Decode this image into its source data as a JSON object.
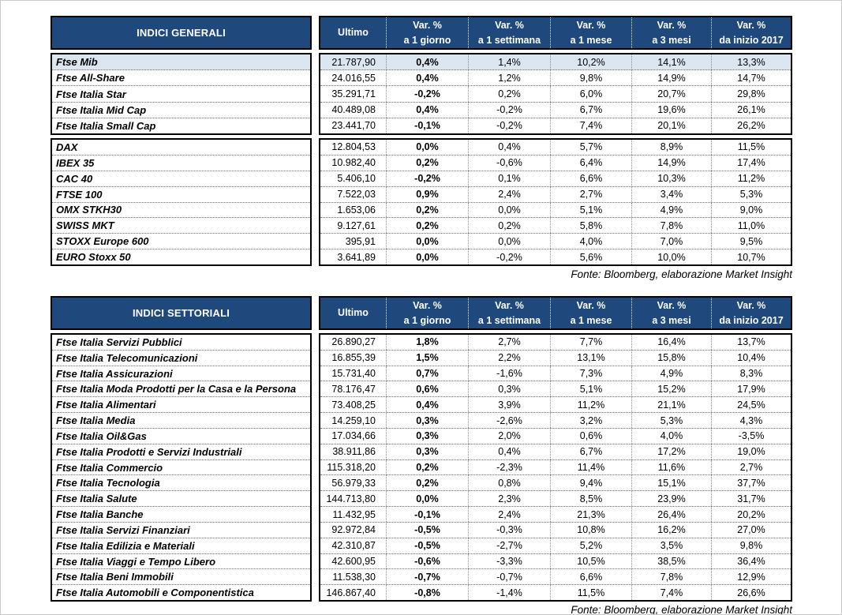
{
  "colors": {
    "header_bg": "#1F497D",
    "header_text": "#FFFFFF",
    "highlight_row_bg": "#DCE6F1",
    "border_black": "#000000",
    "page_frame": "#C8C8C8"
  },
  "column_keys": [
    "ultimo",
    "var-1-giorno",
    "var-1-settimana",
    "var-1-mese",
    "var-3-mesi",
    "var-inizio-2017"
  ],
  "column_headers": [
    {
      "line1": "Ultimo",
      "line2": ""
    },
    {
      "line1": "Var. %",
      "line2": "a 1 giorno"
    },
    {
      "line1": "Var. %",
      "line2": "a 1 settimana"
    },
    {
      "line1": "Var. %",
      "line2": "a 1 mese"
    },
    {
      "line1": "Var. %",
      "line2": "a 3 mesi"
    },
    {
      "line1": "Var. %",
      "line2": "da inizio 2017"
    }
  ],
  "tables": [
    {
      "title": "INDICI GENERALI",
      "source": "Fonte: Bloomberg, elaborazione Market Insight",
      "groups": [
        {
          "rows": [
            {
              "name": "Ftse Mib",
              "highlight": true,
              "values": [
                "21.787,90",
                "0,4%",
                "1,4%",
                "10,2%",
                "14,1%",
                "13,3%"
              ]
            },
            {
              "name": "Ftse All-Share",
              "values": [
                "24.016,55",
                "0,4%",
                "1,2%",
                "9,8%",
                "14,9%",
                "14,7%"
              ]
            },
            {
              "name": "Ftse Italia Star",
              "values": [
                "35.291,71",
                "-0,2%",
                "0,2%",
                "6,0%",
                "20,7%",
                "29,8%"
              ]
            },
            {
              "name": "Ftse Italia Mid Cap",
              "values": [
                "40.489,08",
                "0,4%",
                "-0,2%",
                "6,7%",
                "19,6%",
                "26,1%"
              ]
            },
            {
              "name": "Ftse Italia Small Cap",
              "values": [
                "23.441,70",
                "-0,1%",
                "-0,2%",
                "7,4%",
                "20,1%",
                "26,2%"
              ]
            }
          ]
        },
        {
          "rows": [
            {
              "name": "DAX",
              "values": [
                "12.804,53",
                "0,0%",
                "0,4%",
                "5,7%",
                "8,9%",
                "11,5%"
              ]
            },
            {
              "name": "IBEX 35",
              "values": [
                "10.982,40",
                "0,2%",
                "-0,6%",
                "6,4%",
                "14,9%",
                "17,4%"
              ]
            },
            {
              "name": "CAC 40",
              "values": [
                "5.406,10",
                "-0,2%",
                "0,1%",
                "6,6%",
                "10,3%",
                "11,2%"
              ]
            },
            {
              "name": "FTSE 100",
              "values": [
                "7.522,03",
                "0,9%",
                "2,4%",
                "2,7%",
                "3,4%",
                "5,3%"
              ]
            },
            {
              "name": "OMX STKH30",
              "values": [
                "1.653,06",
                "0,2%",
                "0,0%",
                "5,1%",
                "4,9%",
                "9,0%"
              ]
            },
            {
              "name": "SWISS MKT",
              "values": [
                "9.127,61",
                "0,2%",
                "0,2%",
                "5,8%",
                "7,8%",
                "11,0%"
              ]
            },
            {
              "name": "STOXX Europe 600",
              "values": [
                "395,91",
                "0,0%",
                "0,0%",
                "4,0%",
                "7,0%",
                "9,5%"
              ]
            },
            {
              "name": "EURO Stoxx 50",
              "values": [
                "3.641,89",
                "0,0%",
                "-0,2%",
                "5,6%",
                "10,0%",
                "10,7%"
              ]
            }
          ]
        }
      ]
    },
    {
      "title": "INDICI SETTORIALI",
      "source": "Fonte: Bloomberg, elaborazione Market Insight",
      "groups": [
        {
          "rows": [
            {
              "name": "Ftse Italia Servizi Pubblici",
              "values": [
                "26.890,27",
                "1,8%",
                "2,7%",
                "7,7%",
                "16,4%",
                "13,7%"
              ]
            },
            {
              "name": "Ftse Italia Telecomunicazioni",
              "values": [
                "16.855,39",
                "1,5%",
                "2,2%",
                "13,1%",
                "15,8%",
                "10,4%"
              ]
            },
            {
              "name": "Ftse Italia Assicurazioni",
              "values": [
                "15.731,40",
                "0,7%",
                "-1,6%",
                "7,3%",
                "4,9%",
                "8,3%"
              ]
            },
            {
              "name": "Ftse Italia Moda Prodotti per la Casa e la Persona",
              "values": [
                "78.176,47",
                "0,6%",
                "0,3%",
                "5,1%",
                "15,2%",
                "17,9%"
              ]
            },
            {
              "name": "Ftse Italia Alimentari",
              "values": [
                "73.408,25",
                "0,4%",
                "3,9%",
                "11,2%",
                "21,1%",
                "24,5%"
              ]
            },
            {
              "name": "Ftse Italia Media",
              "values": [
                "14.259,10",
                "0,3%",
                "-2,6%",
                "3,2%",
                "5,3%",
                "4,3%"
              ]
            },
            {
              "name": "Ftse Italia Oil&Gas",
              "values": [
                "17.034,66",
                "0,3%",
                "2,0%",
                "0,6%",
                "4,0%",
                "-3,5%"
              ]
            },
            {
              "name": "Ftse Italia Prodotti e Servizi Industriali",
              "values": [
                "38.911,86",
                "0,3%",
                "0,4%",
                "6,7%",
                "17,2%",
                "19,0%"
              ]
            },
            {
              "name": "Ftse Italia Commercio",
              "values": [
                "115.318,20",
                "0,2%",
                "-2,3%",
                "11,4%",
                "11,6%",
                "2,7%"
              ]
            },
            {
              "name": "Ftse Italia Tecnologia",
              "values": [
                "56.979,33",
                "0,2%",
                "0,8%",
                "9,4%",
                "15,1%",
                "37,7%"
              ]
            },
            {
              "name": "Ftse Italia Salute",
              "values": [
                "144.713,80",
                "0,0%",
                "2,3%",
                "8,5%",
                "23,9%",
                "31,7%"
              ]
            },
            {
              "name": "Ftse Italia Banche",
              "values": [
                "11.432,95",
                "-0,1%",
                "2,4%",
                "21,3%",
                "26,4%",
                "20,2%"
              ]
            },
            {
              "name": "Ftse Italia Servizi Finanziari",
              "values": [
                "92.972,84",
                "-0,5%",
                "-0,3%",
                "10,8%",
                "16,2%",
                "27,0%"
              ]
            },
            {
              "name": "Ftse Italia Edilizia e Materiali",
              "values": [
                "42.310,87",
                "-0,5%",
                "-2,7%",
                "5,2%",
                "3,5%",
                "9,8%"
              ]
            },
            {
              "name": "Ftse Italia Viaggi e Tempo Libero",
              "values": [
                "42.600,95",
                "-0,6%",
                "-3,3%",
                "10,5%",
                "38,5%",
                "36,4%"
              ]
            },
            {
              "name": "Ftse Italia Beni Immobili",
              "values": [
                "11.538,30",
                "-0,7%",
                "-0,7%",
                "6,6%",
                "7,8%",
                "12,9%"
              ]
            },
            {
              "name": "Ftse Italia Automobili e Componentistica",
              "values": [
                "146.867,40",
                "-0,8%",
                "-1,4%",
                "11,5%",
                "7,4%",
                "26,6%"
              ]
            }
          ]
        }
      ]
    }
  ]
}
